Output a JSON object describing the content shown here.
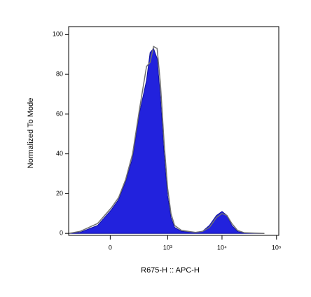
{
  "chart_data": {
    "type": "area",
    "xlabel": "R675-H :: APC-H",
    "ylabel": "Normalized To Mode",
    "xscale": "biexponential",
    "x": [
      -500,
      -292,
      -99,
      10,
      64,
      124,
      194,
      283,
      393,
      463,
      541,
      632,
      733,
      854,
      993,
      1153,
      1340,
      1800,
      3260,
      4380,
      5880,
      7900,
      10000,
      12300,
      15100,
      19200,
      25800,
      60000
    ],
    "series": [
      {
        "color": "#2222dd",
        "fill": true,
        "values": [
          0,
          0.5,
          4,
          12,
          17,
          26,
          38,
          61,
          77,
          91,
          93,
          88,
          68,
          40,
          19,
          8,
          3,
          1,
          0.5,
          1,
          4,
          9,
          11,
          9,
          4,
          1,
          0,
          0
        ]
      },
      {
        "color": "#707070",
        "fill": false,
        "values": [
          0,
          1,
          5,
          13,
          18,
          27,
          40,
          63,
          84,
          86,
          94,
          93,
          75,
          46,
          23,
          10,
          4,
          1.5,
          0.5,
          1,
          3,
          8,
          10,
          9,
          5,
          1.5,
          0.3,
          0
        ]
      }
    ],
    "xlim": [
      -500,
      110000
    ],
    "xticks": [
      0,
      {
        "value": 1000,
        "label": "10³"
      },
      {
        "value": 10000,
        "label": "10⁴"
      },
      {
        "value": 100000,
        "label": "10⁵"
      }
    ],
    "ylim": [
      -1,
      104
    ],
    "yticks": [
      0,
      20,
      40,
      60,
      80,
      100
    ]
  }
}
